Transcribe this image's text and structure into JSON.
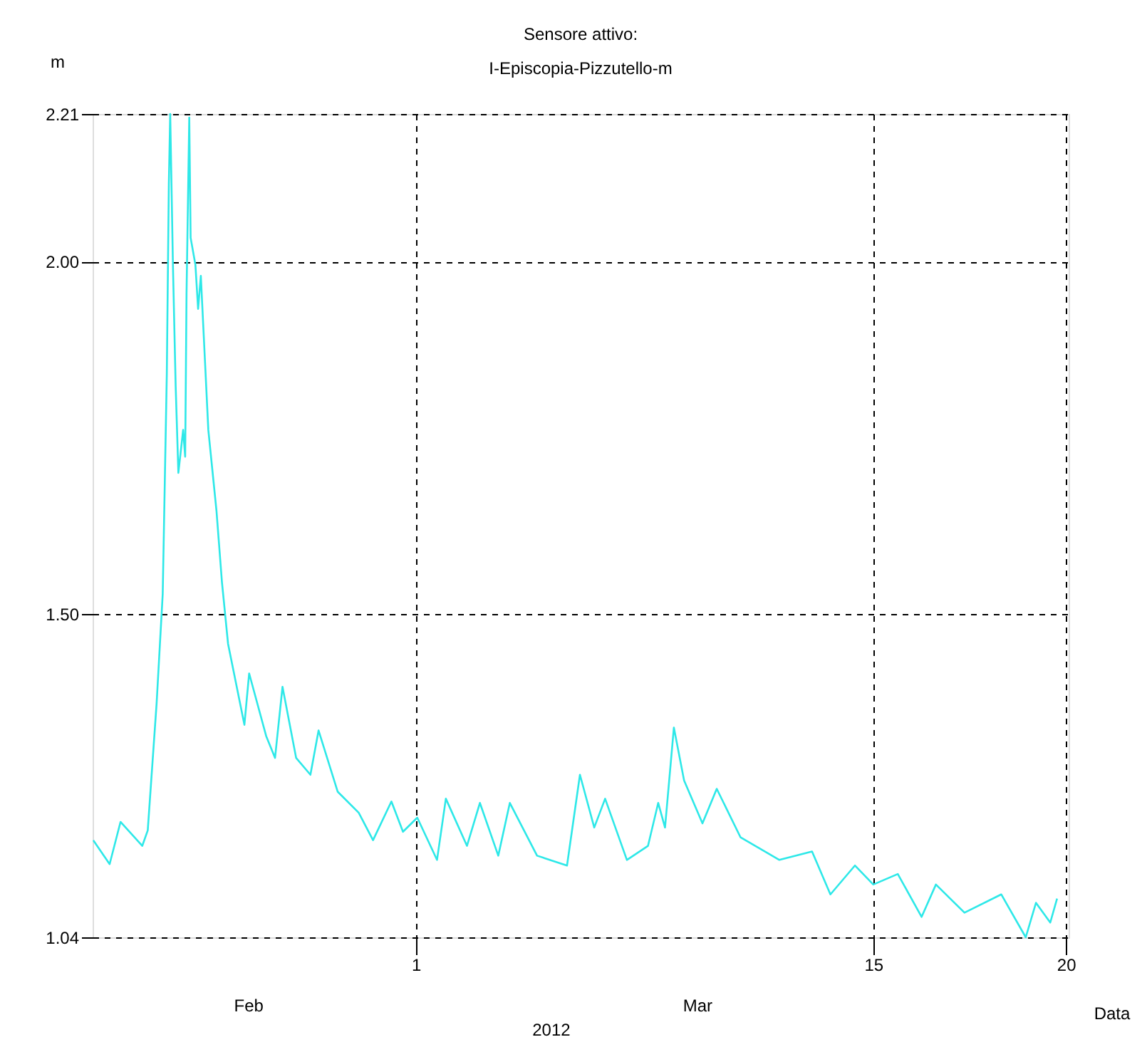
{
  "chart_data": {
    "type": "line",
    "title": "Sensore attivo:",
    "subtitle": "I-Episcopia-Pizzutello-m",
    "ylabel": "m",
    "xlabel": "Data",
    "annotations": [
      "Feb",
      "Mar",
      "2012"
    ],
    "xlim": [
      "2012-02-20T02:30",
      "2012-03-20T23:30"
    ],
    "xticks": [
      {
        "value": "2012-03-01",
        "label": "1"
      },
      {
        "value": "2012-03-15",
        "label": "15"
      },
      {
        "value": "2012-03-20T21:30",
        "label": "20"
      }
    ],
    "ylim": [
      1.04,
      2.21
    ],
    "yticks": [
      {
        "value": 1.04,
        "label": "1.04"
      },
      {
        "value": 1.5,
        "label": "1.50"
      },
      {
        "value": 2,
        "label": "2.00"
      },
      {
        "value": 2.21,
        "label": "2.21"
      }
    ],
    "grid": true,
    "line_style": "solid",
    "marker": "none",
    "series": [
      {
        "color": "#2ee8e8",
        "x": [
          "2012-02-20T03:00",
          "2012-02-20T15:00",
          "2012-02-20T23:00",
          "2012-02-21T15:00",
          "2012-02-21T19:00",
          "2012-02-22T01:30",
          "2012-02-22T06:00",
          "2012-02-22T09:00",
          "2012-02-22T10:30",
          "2012-02-22T11:30",
          "2012-02-22T13:30",
          "2012-02-22T15:30",
          "2012-02-22T17:30",
          "2012-02-22T21:00",
          "2012-02-22T22:30",
          "2012-02-22T23:30",
          "2012-02-23T01:30",
          "2012-02-23T02:30",
          "2012-02-23T06:00",
          "2012-02-23T08:00",
          "2012-02-23T10:00",
          "2012-02-23T15:30",
          "2012-02-23T21:30",
          "2012-02-24T01:30",
          "2012-02-24T06:00",
          "2012-02-24T18:00",
          "2012-02-24T21:30",
          "2012-02-25T10:00",
          "2012-02-25T16:30",
          "2012-02-25T22:00",
          "2012-02-26T08:00",
          "2012-02-26T18:30",
          "2012-02-27T00:30",
          "2012-02-27T14:30",
          "2012-02-28T06:00",
          "2012-02-28T16:30",
          "2012-02-29T06:00",
          "2012-02-29T14:30",
          "2012-03-01T01:00",
          "2012-03-01T15:30",
          "2012-03-01T22:00",
          "2012-03-02T13:30",
          "2012-03-02T23:00",
          "2012-03-03T12:30",
          "2012-03-03T21:00",
          "2012-03-04T17:00",
          "2012-03-05T15:00",
          "2012-03-06T00:30",
          "2012-03-06T11:00",
          "2012-03-06T19:00",
          "2012-03-07T11:00",
          "2012-03-08T02:30",
          "2012-03-08T10:00",
          "2012-03-08T15:00",
          "2012-03-08T21:30",
          "2012-03-09T05:00",
          "2012-03-09T18:30",
          "2012-03-10T05:00",
          "2012-03-10T22:30",
          "2012-03-12T03:00",
          "2012-03-13T03:00",
          "2012-03-13T16:30",
          "2012-03-14T10:30",
          "2012-03-15T00:00",
          "2012-03-15T18:00",
          "2012-03-16T11:30",
          "2012-03-16T22:00",
          "2012-03-17T19:00",
          "2012-03-18T22:00",
          "2012-03-19T16:00",
          "2012-03-19T23:30",
          "2012-03-20T10:00",
          "2012-03-20T15:00"
        ],
        "values": [
          1.178,
          1.144,
          1.204,
          1.17,
          1.192,
          1.372,
          1.528,
          1.84,
          2.111,
          2.21,
          1.996,
          1.824,
          1.7,
          1.761,
          1.723,
          1.955,
          2.205,
          2.034,
          1.996,
          1.933,
          1.98,
          1.761,
          1.646,
          1.545,
          1.457,
          1.342,
          1.415,
          1.326,
          1.295,
          1.396,
          1.295,
          1.271,
          1.334,
          1.247,
          1.217,
          1.178,
          1.233,
          1.19,
          1.21,
          1.15,
          1.237,
          1.17,
          1.231,
          1.156,
          1.231,
          1.156,
          1.142,
          1.271,
          1.196,
          1.237,
          1.15,
          1.17,
          1.231,
          1.196,
          1.338,
          1.263,
          1.202,
          1.251,
          1.182,
          1.15,
          1.162,
          1.101,
          1.142,
          1.115,
          1.13,
          1.069,
          1.115,
          1.075,
          1.101,
          1.04,
          1.089,
          1.061,
          1.095
        ]
      }
    ]
  }
}
